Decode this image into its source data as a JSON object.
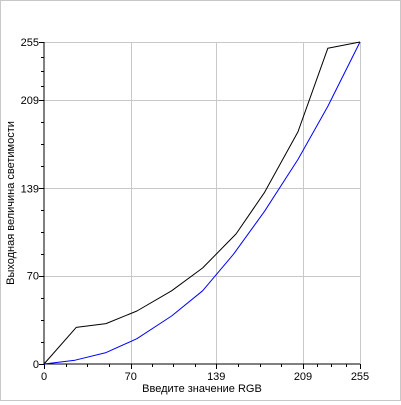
{
  "chart_data": {
    "type": "line",
    "title": "",
    "xlabel": "Введите значение RGB",
    "ylabel": "Выходная величина светимости",
    "xlim": [
      0,
      255
    ],
    "ylim": [
      0,
      255
    ],
    "x_ticks": [
      "0",
      "70",
      "139",
      "209",
      "255"
    ],
    "y_ticks": [
      "0",
      "70",
      "139",
      "209",
      "255"
    ],
    "x_tick_values": [
      0,
      70,
      139,
      209,
      255
    ],
    "y_tick_values": [
      0,
      70,
      139,
      209,
      255
    ],
    "grid": true,
    "series": [
      {
        "color": "#000000",
        "points": [
          [
            0,
            0
          ],
          [
            26,
            29
          ],
          [
            50,
            32
          ],
          [
            75,
            42
          ],
          [
            103,
            58
          ],
          [
            128,
            76
          ],
          [
            155,
            103
          ],
          [
            178,
            136
          ],
          [
            205,
            184
          ],
          [
            229,
            250
          ],
          [
            255,
            255
          ]
        ]
      },
      {
        "color": "#0000ff",
        "points": [
          [
            0,
            0
          ],
          [
            25,
            3
          ],
          [
            50,
            9
          ],
          [
            75,
            20
          ],
          [
            103,
            38
          ],
          [
            128,
            58
          ],
          [
            153,
            87
          ],
          [
            178,
            121
          ],
          [
            205,
            162
          ],
          [
            229,
            204
          ],
          [
            255,
            255
          ]
        ]
      }
    ]
  }
}
